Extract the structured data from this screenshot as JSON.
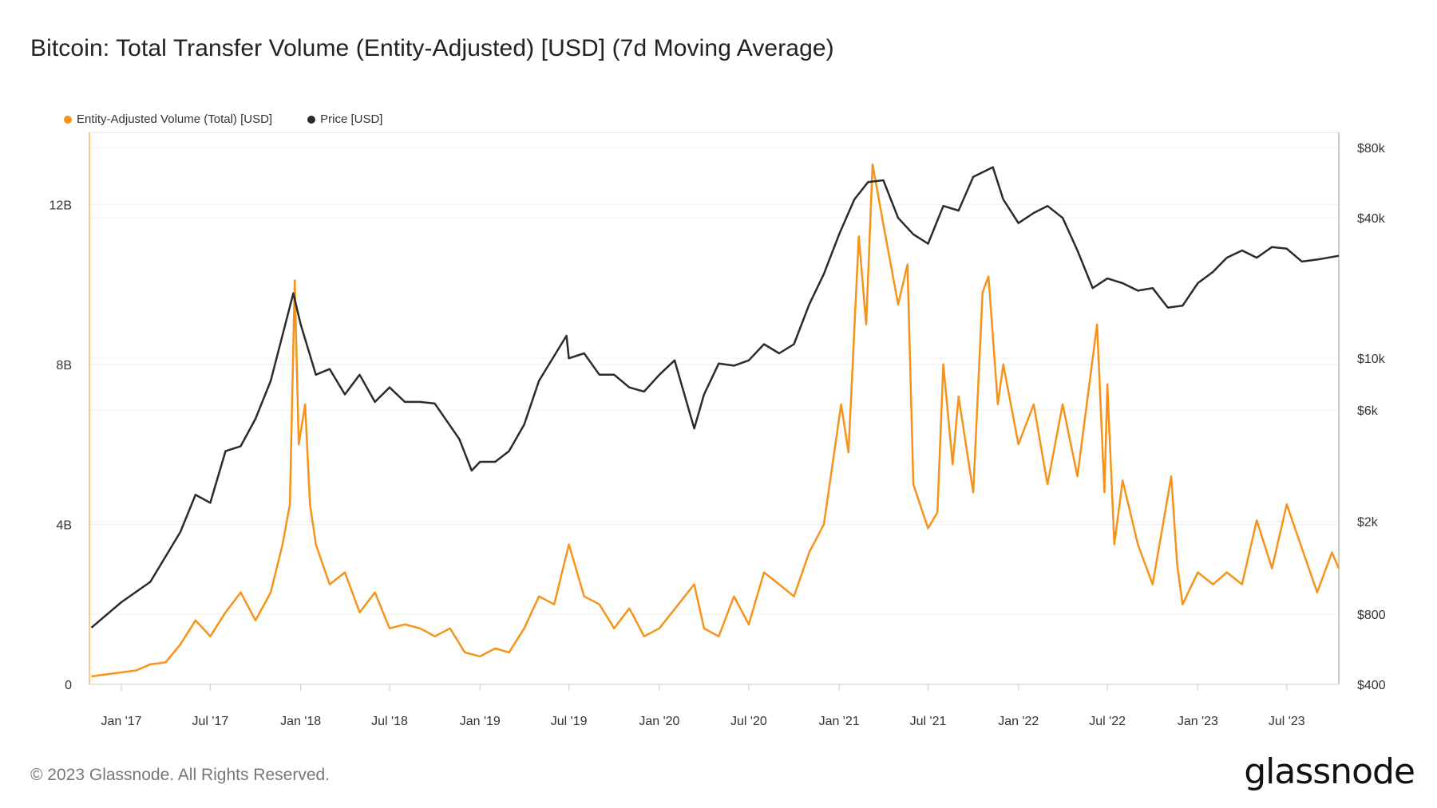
{
  "title": "Bitcoin: Total Transfer Volume (Entity-Adjusted) [USD] (7d Moving Average)",
  "footer": "© 2023 Glassnode. All Rights Reserved.",
  "logo": "glassnode",
  "chart_data": {
    "type": "line",
    "title": "Bitcoin: Total Transfer Volume (Entity-Adjusted) [USD] (7d Moving Average)",
    "legend_position": "top-left",
    "grid": true,
    "x_ticks": [
      "Jan '17",
      "Jul '17",
      "Jan '18",
      "Jul '18",
      "Jan '19",
      "Jul '19",
      "Jan '20",
      "Jul '20",
      "Jan '21",
      "Jul '21",
      "Jan '22",
      "Jul '22",
      "Jan '23",
      "Jul '23"
    ],
    "x_tick_dates": [
      "2017-01-01",
      "2017-07-01",
      "2018-01-01",
      "2018-07-01",
      "2019-01-01",
      "2019-07-01",
      "2020-01-01",
      "2020-07-01",
      "2021-01-01",
      "2021-07-01",
      "2022-01-01",
      "2022-07-01",
      "2023-01-01",
      "2023-07-01"
    ],
    "xlim": [
      "2016-10-28",
      "2023-10-15"
    ],
    "y_left": {
      "ticks": [
        0,
        4,
        8,
        12
      ],
      "tick_labels": [
        "0",
        "4B",
        "8B",
        "12B"
      ],
      "unit": "billion USD",
      "ylim": [
        0,
        13.8
      ],
      "scale": "linear"
    },
    "y_right": {
      "ticks": [
        400,
        800,
        2000,
        6000,
        10000,
        40000,
        80000
      ],
      "tick_labels": [
        "$400",
        "$800",
        "$2k",
        "$6k",
        "$10k",
        "$40k",
        "$80k"
      ],
      "ylim": [
        400,
        93000
      ],
      "scale": "log"
    },
    "colors": {
      "volume": "#f7931a",
      "price": "#2b2b2b"
    },
    "series": [
      {
        "name": "Entity-Adjusted Volume (Total) [USD]",
        "axis": "left",
        "color": "#f7931a",
        "points": [
          [
            "2016-11-01",
            0.2
          ],
          [
            "2016-12-01",
            0.25
          ],
          [
            "2017-01-01",
            0.3
          ],
          [
            "2017-02-01",
            0.35
          ],
          [
            "2017-03-01",
            0.5
          ],
          [
            "2017-04-01",
            0.55
          ],
          [
            "2017-05-01",
            1.0
          ],
          [
            "2017-06-01",
            1.6
          ],
          [
            "2017-07-01",
            1.2
          ],
          [
            "2017-08-01",
            1.8
          ],
          [
            "2017-09-01",
            2.3
          ],
          [
            "2017-10-01",
            1.6
          ],
          [
            "2017-11-01",
            2.3
          ],
          [
            "2017-11-25",
            3.5
          ],
          [
            "2017-12-10",
            4.5
          ],
          [
            "2017-12-20",
            10.1
          ],
          [
            "2017-12-28",
            6.0
          ],
          [
            "2018-01-10",
            7.0
          ],
          [
            "2018-01-20",
            4.5
          ],
          [
            "2018-02-01",
            3.5
          ],
          [
            "2018-03-01",
            2.5
          ],
          [
            "2018-04-01",
            2.8
          ],
          [
            "2018-05-01",
            1.8
          ],
          [
            "2018-06-01",
            2.3
          ],
          [
            "2018-07-01",
            1.4
          ],
          [
            "2018-08-01",
            1.5
          ],
          [
            "2018-09-01",
            1.4
          ],
          [
            "2018-10-01",
            1.2
          ],
          [
            "2018-11-01",
            1.4
          ],
          [
            "2018-12-01",
            0.8
          ],
          [
            "2019-01-01",
            0.7
          ],
          [
            "2019-02-01",
            0.9
          ],
          [
            "2019-03-01",
            0.8
          ],
          [
            "2019-04-01",
            1.4
          ],
          [
            "2019-05-01",
            2.2
          ],
          [
            "2019-06-01",
            2.0
          ],
          [
            "2019-07-01",
            3.5
          ],
          [
            "2019-08-01",
            2.2
          ],
          [
            "2019-09-01",
            2.0
          ],
          [
            "2019-10-01",
            1.4
          ],
          [
            "2019-11-01",
            1.9
          ],
          [
            "2019-12-01",
            1.2
          ],
          [
            "2020-01-01",
            1.4
          ],
          [
            "2020-03-12",
            2.5
          ],
          [
            "2020-04-01",
            1.4
          ],
          [
            "2020-05-01",
            1.2
          ],
          [
            "2020-06-01",
            2.2
          ],
          [
            "2020-07-01",
            1.5
          ],
          [
            "2020-08-01",
            2.8
          ],
          [
            "2020-09-01",
            2.5
          ],
          [
            "2020-10-01",
            2.2
          ],
          [
            "2020-11-01",
            3.3
          ],
          [
            "2020-12-01",
            4.0
          ],
          [
            "2021-01-05",
            7.0
          ],
          [
            "2021-01-20",
            5.8
          ],
          [
            "2021-02-10",
            11.2
          ],
          [
            "2021-02-25",
            9.0
          ],
          [
            "2021-03-01",
            10.2
          ],
          [
            "2021-03-10",
            13.0
          ],
          [
            "2021-04-01",
            11.5
          ],
          [
            "2021-05-01",
            9.5
          ],
          [
            "2021-05-20",
            10.5
          ],
          [
            "2021-06-01",
            5.0
          ],
          [
            "2021-07-01",
            3.9
          ],
          [
            "2021-07-20",
            4.3
          ],
          [
            "2021-08-01",
            8.0
          ],
          [
            "2021-08-20",
            5.5
          ],
          [
            "2021-09-01",
            7.2
          ],
          [
            "2021-10-01",
            4.8
          ],
          [
            "2021-10-20",
            9.8
          ],
          [
            "2021-11-01",
            10.2
          ],
          [
            "2021-11-20",
            7.0
          ],
          [
            "2021-12-01",
            8.0
          ],
          [
            "2022-01-01",
            6.0
          ],
          [
            "2022-02-01",
            7.0
          ],
          [
            "2022-03-01",
            5.0
          ],
          [
            "2022-04-01",
            7.0
          ],
          [
            "2022-05-01",
            5.2
          ],
          [
            "2022-06-10",
            9.0
          ],
          [
            "2022-06-25",
            4.8
          ],
          [
            "2022-07-01",
            7.5
          ],
          [
            "2022-07-15",
            3.5
          ],
          [
            "2022-08-01",
            5.1
          ],
          [
            "2022-09-01",
            3.5
          ],
          [
            "2022-10-01",
            2.5
          ],
          [
            "2022-11-08",
            5.2
          ],
          [
            "2022-11-20",
            3.0
          ],
          [
            "2022-12-01",
            2.0
          ],
          [
            "2023-01-01",
            2.8
          ],
          [
            "2023-02-01",
            2.5
          ],
          [
            "2023-03-01",
            2.8
          ],
          [
            "2023-04-01",
            2.5
          ],
          [
            "2023-05-01",
            4.1
          ],
          [
            "2023-06-01",
            2.9
          ],
          [
            "2023-07-01",
            4.5
          ],
          [
            "2023-08-01",
            3.4
          ],
          [
            "2023-09-01",
            2.3
          ],
          [
            "2023-10-01",
            3.3
          ],
          [
            "2023-10-15",
            2.9
          ]
        ]
      },
      {
        "name": "Price [USD]",
        "axis": "right",
        "color": "#2b2b2b",
        "points": [
          [
            "2016-11-01",
            700
          ],
          [
            "2017-01-01",
            900
          ],
          [
            "2017-03-01",
            1100
          ],
          [
            "2017-05-01",
            1800
          ],
          [
            "2017-06-01",
            2600
          ],
          [
            "2017-07-01",
            2400
          ],
          [
            "2017-08-01",
            4000
          ],
          [
            "2017-09-01",
            4200
          ],
          [
            "2017-10-01",
            5500
          ],
          [
            "2017-11-01",
            8000
          ],
          [
            "2017-12-17",
            19000
          ],
          [
            "2018-01-01",
            14000
          ],
          [
            "2018-02-01",
            8500
          ],
          [
            "2018-03-01",
            9000
          ],
          [
            "2018-04-01",
            7000
          ],
          [
            "2018-05-01",
            8500
          ],
          [
            "2018-06-01",
            6500
          ],
          [
            "2018-07-01",
            7500
          ],
          [
            "2018-08-01",
            6500
          ],
          [
            "2018-09-01",
            6500
          ],
          [
            "2018-10-01",
            6400
          ],
          [
            "2018-11-20",
            4500
          ],
          [
            "2018-12-15",
            3300
          ],
          [
            "2019-01-01",
            3600
          ],
          [
            "2019-02-01",
            3600
          ],
          [
            "2019-03-01",
            4000
          ],
          [
            "2019-04-01",
            5200
          ],
          [
            "2019-05-01",
            8000
          ],
          [
            "2019-06-26",
            12500
          ],
          [
            "2019-07-01",
            10000
          ],
          [
            "2019-08-01",
            10500
          ],
          [
            "2019-09-01",
            8500
          ],
          [
            "2019-10-01",
            8500
          ],
          [
            "2019-11-01",
            7500
          ],
          [
            "2019-12-01",
            7200
          ],
          [
            "2020-01-01",
            8500
          ],
          [
            "2020-02-01",
            9800
          ],
          [
            "2020-03-12",
            5000
          ],
          [
            "2020-04-01",
            7000
          ],
          [
            "2020-05-01",
            9500
          ],
          [
            "2020-06-01",
            9300
          ],
          [
            "2020-07-01",
            9800
          ],
          [
            "2020-08-01",
            11500
          ],
          [
            "2020-09-01",
            10500
          ],
          [
            "2020-10-01",
            11500
          ],
          [
            "2020-11-01",
            17000
          ],
          [
            "2020-12-01",
            23000
          ],
          [
            "2021-01-01",
            34000
          ],
          [
            "2021-02-01",
            48000
          ],
          [
            "2021-03-01",
            57000
          ],
          [
            "2021-04-01",
            58000
          ],
          [
            "2021-05-01",
            40000
          ],
          [
            "2021-06-01",
            34000
          ],
          [
            "2021-07-01",
            31000
          ],
          [
            "2021-08-01",
            45000
          ],
          [
            "2021-09-01",
            43000
          ],
          [
            "2021-10-01",
            60000
          ],
          [
            "2021-11-10",
            66000
          ],
          [
            "2021-12-01",
            48000
          ],
          [
            "2022-01-01",
            38000
          ],
          [
            "2022-02-01",
            42000
          ],
          [
            "2022-03-01",
            45000
          ],
          [
            "2022-04-01",
            40000
          ],
          [
            "2022-05-01",
            29000
          ],
          [
            "2022-06-01",
            20000
          ],
          [
            "2022-07-01",
            22000
          ],
          [
            "2022-08-01",
            21000
          ],
          [
            "2022-09-01",
            19500
          ],
          [
            "2022-10-01",
            20000
          ],
          [
            "2022-11-01",
            16500
          ],
          [
            "2022-12-01",
            16800
          ],
          [
            "2023-01-01",
            21000
          ],
          [
            "2023-02-01",
            23500
          ],
          [
            "2023-03-01",
            27000
          ],
          [
            "2023-04-01",
            29000
          ],
          [
            "2023-05-01",
            27000
          ],
          [
            "2023-06-01",
            30000
          ],
          [
            "2023-07-01",
            29500
          ],
          [
            "2023-08-01",
            26000
          ],
          [
            "2023-09-01",
            26500
          ],
          [
            "2023-10-15",
            27500
          ]
        ]
      }
    ]
  }
}
